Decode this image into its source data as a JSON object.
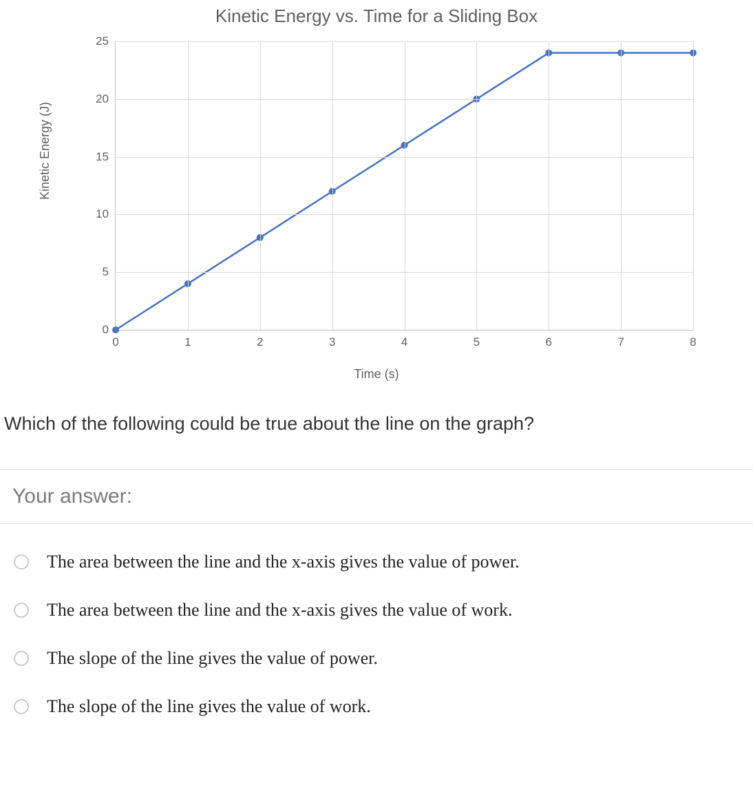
{
  "chart": {
    "type": "line",
    "title": "Kinetic Energy vs. Time for a Sliding Box",
    "title_fontsize": 26,
    "title_color": "#5f5f5f",
    "xlabel": "Time (s)",
    "ylabel": "Kinetic Energy (J)",
    "label_fontsize": 18,
    "label_color": "#5f5f5f",
    "xlim": [
      0,
      8
    ],
    "ylim": [
      0,
      25
    ],
    "xtick_step": 1,
    "ytick_step": 5,
    "xticks": [
      0,
      1,
      2,
      3,
      4,
      5,
      6,
      7,
      8
    ],
    "yticks": [
      0,
      5,
      10,
      15,
      20,
      25
    ],
    "tick_fontsize": 17,
    "tick_color": "#5f5f5f",
    "grid_color": "#d9d9d9",
    "axis_color": "#bfbfbf",
    "background_color": "#ffffff",
    "line_color": "#4472c4",
    "line_width": 2.5,
    "marker_color": "#4472c4",
    "marker_radius": 5,
    "x": [
      0,
      1,
      2,
      3,
      4,
      5,
      6,
      7,
      8
    ],
    "y": [
      0,
      4,
      8,
      12,
      16,
      20,
      24,
      24,
      24
    ]
  },
  "question": "Which of the following could be true about the line on the graph?",
  "answer_header": "Your answer:",
  "options": [
    "The area between the line and the x-axis gives the value of power.",
    "The area between the line and the x-axis gives the value of work.",
    "The slope of the line gives the value of power.",
    "The slope of the line gives the value of work."
  ],
  "question_fontsize": 27,
  "answer_header_fontsize": 30,
  "option_fontsize": 26,
  "option_font": "Georgia, 'Times New Roman', serif",
  "radio_border_color": "#c8c8c8"
}
